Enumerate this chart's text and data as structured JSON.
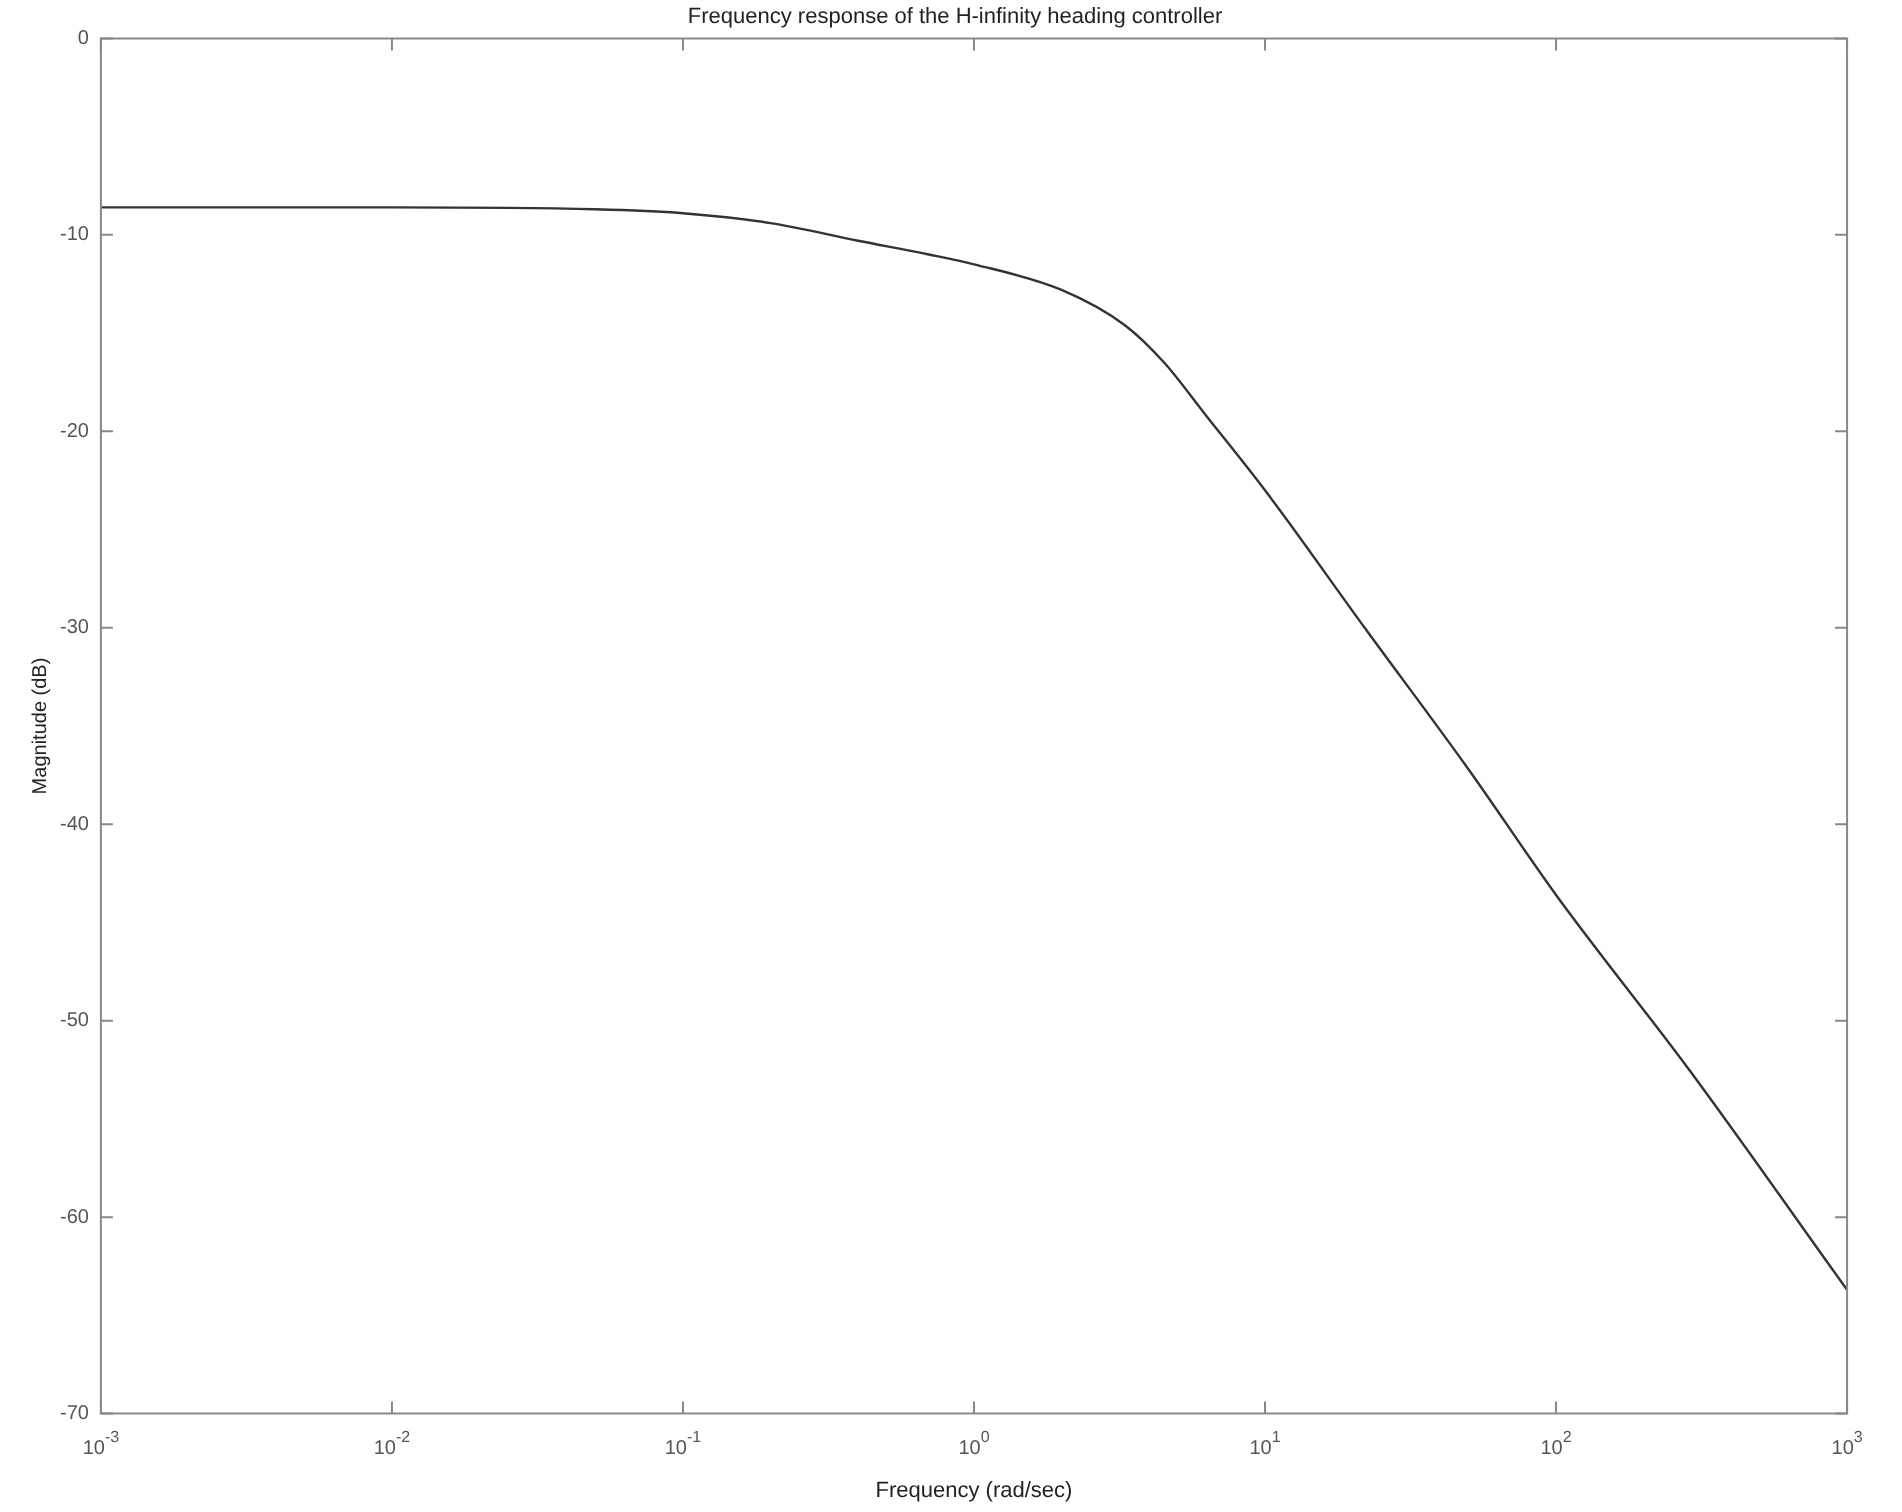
{
  "chart_data": {
    "type": "line",
    "title": "Frequency response of the H-infinity heading controller",
    "xlabel": "Frequency (rad/sec)",
    "ylabel": "Magnitude (dB)",
    "log": "x",
    "x": [
      0.001,
      0.01,
      0.05,
      0.1,
      0.2,
      0.4,
      0.7,
      1,
      2,
      3.3,
      4.5,
      6.2,
      10,
      22,
      50,
      100,
      290,
      1000
    ],
    "series": [
      {
        "color": "#333333",
        "values": [
          -8.6,
          -8.6,
          -8.7,
          -8.9,
          -9.4,
          -10.3,
          -11,
          -11.5,
          -12.8,
          -14.6,
          -16.5,
          -19.1,
          -23,
          -30,
          -37.2,
          -43.6,
          -52.6,
          -63.7
        ]
      }
    ],
    "xlim": [
      0.001,
      1000
    ],
    "xticks": [
      {
        "value": 0.001,
        "label": "10$^{-3}$"
      },
      {
        "value": 0.01,
        "label": "10$^{-2}$"
      },
      {
        "value": 0.1,
        "label": "10$^{-1}$"
      },
      {
        "value": 1,
        "label": "10$^{0}$"
      },
      {
        "value": 10,
        "label": "10$^{1}$"
      },
      {
        "value": 100,
        "label": "10$^{2}$"
      },
      {
        "value": 1000,
        "label": "10$^{3}$"
      }
    ],
    "ylim": [
      -70,
      0
    ],
    "yticks": [
      -70,
      -60,
      -50,
      -40,
      -30,
      -20,
      -10,
      0
    ],
    "grid": false,
    "legend": false,
    "marker": "none",
    "line_style": "solid"
  }
}
